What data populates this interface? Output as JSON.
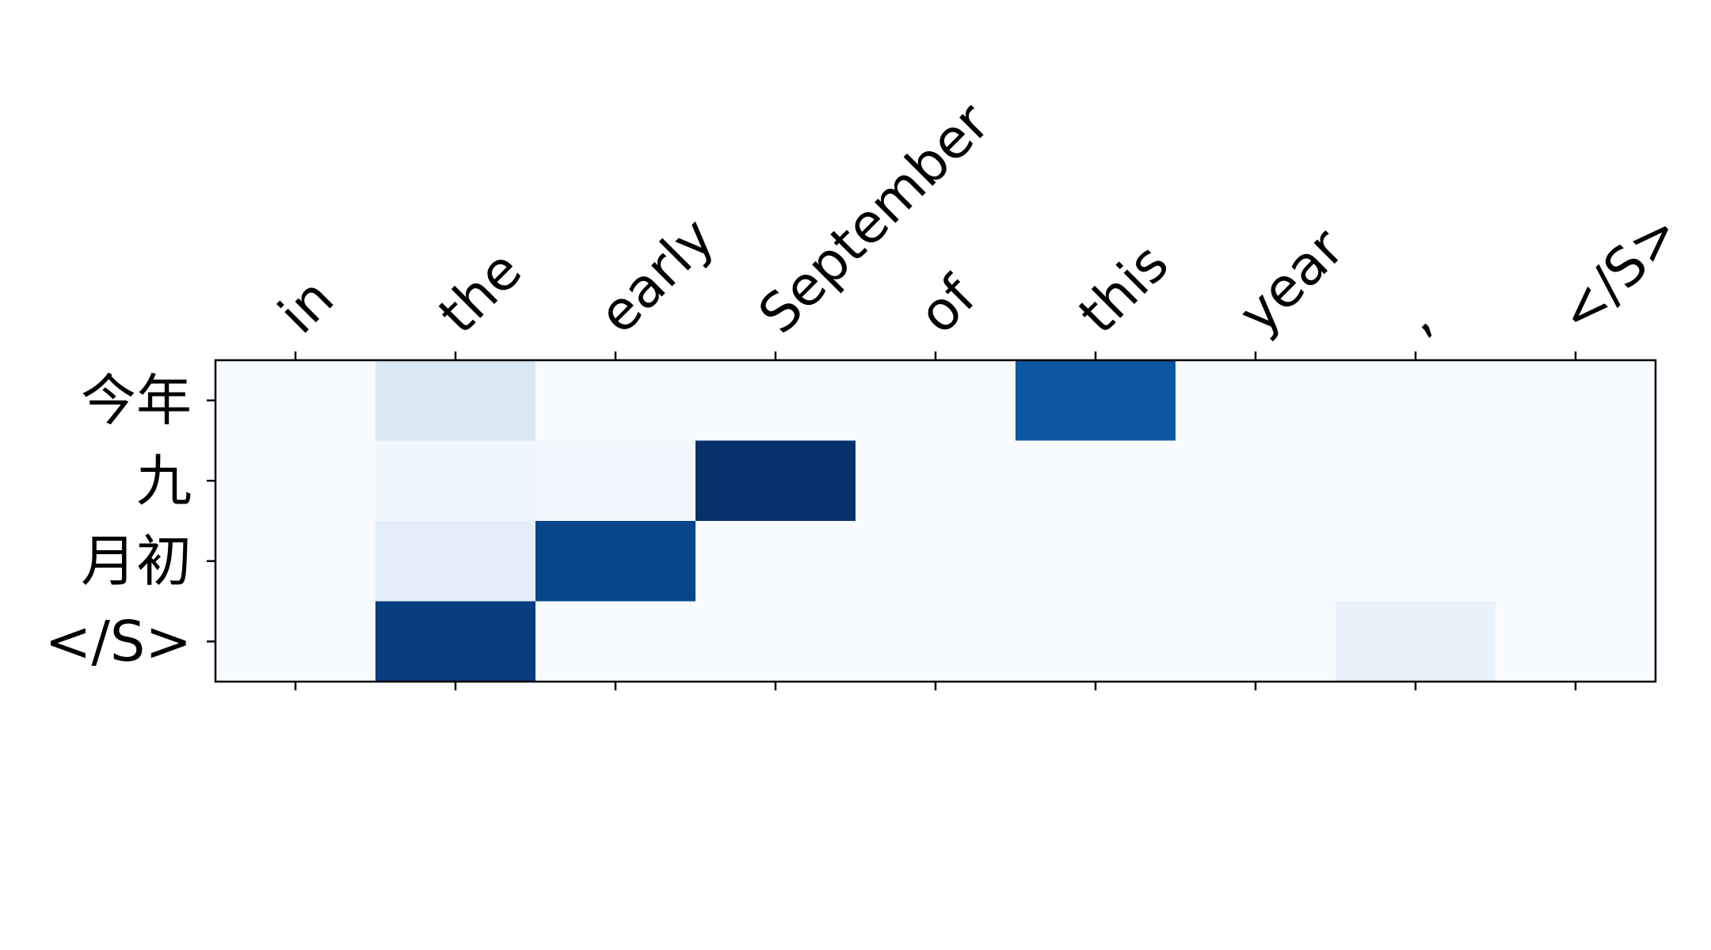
{
  "chart_data": {
    "type": "heatmap",
    "title": "",
    "xlabel": "",
    "ylabel": "",
    "x_categories": [
      "in",
      "the",
      "early",
      "September",
      "of",
      "this",
      "year",
      ",",
      "</S>"
    ],
    "y_categories": [
      "今年",
      "九",
      "月初",
      "</S>"
    ],
    "x_axis_position": "top",
    "x_tick_rotation_deg": 45,
    "colormap": "Blues",
    "value_range": [
      0,
      1
    ],
    "grid": false,
    "legend": "none",
    "values": [
      [
        0.0,
        0.15,
        0.0,
        0.0,
        0.0,
        0.85,
        0.0,
        0.0,
        0.0
      ],
      [
        0.0,
        0.04,
        0.02,
        1.0,
        0.0,
        0.0,
        0.0,
        0.0,
        0.0
      ],
      [
        0.0,
        0.1,
        0.92,
        0.0,
        0.0,
        0.0,
        0.0,
        0.0,
        0.0
      ],
      [
        0.0,
        0.95,
        0.0,
        0.0,
        0.0,
        0.0,
        0.0,
        0.07,
        0.0
      ]
    ]
  }
}
